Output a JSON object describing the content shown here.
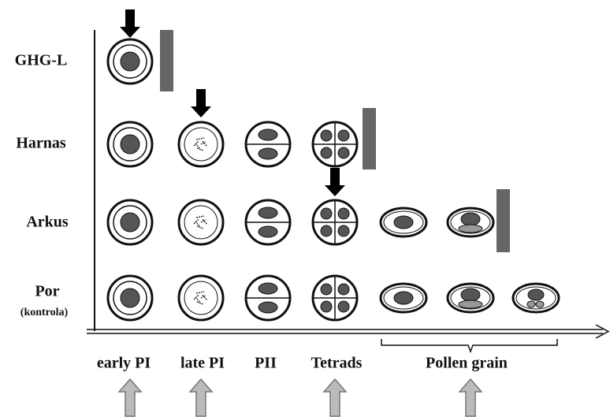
{
  "rows": [
    {
      "label": "GHG-L"
    },
    {
      "label": "Harnas"
    },
    {
      "label": "Arkus"
    },
    {
      "label": "Por",
      "note": "(kontrola)"
    }
  ],
  "stages": [
    "early PI",
    "late PI",
    "PII",
    "Tetrads",
    "Pollen grain"
  ]
}
